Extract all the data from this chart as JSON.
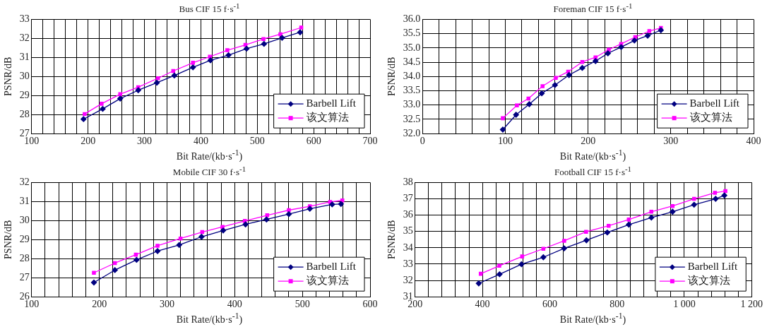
{
  "chart_data": [
    {
      "type": "line",
      "title": "Bus  CIF  15 f·s$^{-1}$",
      "xlabel": "Bit Rate/(kb·s$^{-1}$)",
      "ylabel": "PSNR/dB",
      "grid": true,
      "legend": "bottom right",
      "xlim": [
        100,
        700
      ],
      "xticks": [
        100,
        {
          "value": 120,
          "label": null
        },
        {
          "value": 140,
          "label": null
        },
        {
          "value": 160,
          "label": null
        },
        {
          "value": 180,
          "label": null
        },
        200,
        {
          "value": 220,
          "label": null
        },
        {
          "value": 240,
          "label": null
        },
        {
          "value": 260,
          "label": null
        },
        {
          "value": 280,
          "label": null
        },
        300,
        {
          "value": 320,
          "label": null
        },
        {
          "value": 340,
          "label": null
        },
        {
          "value": 360,
          "label": null
        },
        {
          "value": 380,
          "label": null
        },
        400,
        {
          "value": 420,
          "label": null
        },
        {
          "value": 440,
          "label": null
        },
        {
          "value": 460,
          "label": null
        },
        {
          "value": 480,
          "label": null
        },
        500,
        {
          "value": 520,
          "label": null
        },
        {
          "value": 540,
          "label": null
        },
        {
          "value": 560,
          "label": null
        },
        {
          "value": 580,
          "label": null
        },
        600,
        {
          "value": 620,
          "label": null
        },
        {
          "value": 640,
          "label": null
        },
        {
          "value": 660,
          "label": null
        },
        {
          "value": 680,
          "label": null
        },
        700
      ],
      "ylim": [
        27,
        33
      ],
      "yticks": [
        27,
        28,
        29,
        30,
        31,
        32,
        33
      ],
      "series": [
        {
          "name": "Barbell Lift",
          "color": "#000080",
          "marker": "diamond",
          "x": [
            192,
            226,
            257,
            289,
            322,
            353,
            386,
            417,
            449,
            481,
            512,
            544,
            576
          ],
          "values": [
            27.76,
            28.3,
            28.84,
            29.28,
            29.67,
            30.05,
            30.48,
            30.85,
            31.12,
            31.46,
            31.71,
            32.03,
            32.32
          ]
        },
        {
          "name": "该文算法",
          "color": "#ff00ff",
          "marker": "square",
          "x": [
            194,
            224,
            257,
            289,
            324,
            351,
            386,
            416,
            447,
            479,
            511,
            541,
            578
          ],
          "values": [
            28.03,
            28.57,
            29.07,
            29.44,
            29.91,
            30.29,
            30.72,
            31.04,
            31.38,
            31.66,
            31.97,
            32.22,
            32.57
          ]
        }
      ]
    },
    {
      "type": "line",
      "title": "Foreman  CIF  15 f·s$^{-1}$",
      "xlabel": "Bit Rate/(kb·s$^{-1}$)",
      "ylabel": "PSNR/dB",
      "grid": true,
      "legend": "bottom right",
      "xlim": [
        0,
        400
      ],
      "xticks": [
        0,
        {
          "value": 20,
          "label": null
        },
        {
          "value": 40,
          "label": null
        },
        {
          "value": 60,
          "label": null
        },
        {
          "value": 80,
          "label": null
        },
        100,
        {
          "value": 120,
          "label": null
        },
        {
          "value": 140,
          "label": null
        },
        {
          "value": 160,
          "label": null
        },
        {
          "value": 180,
          "label": null
        },
        200,
        {
          "value": 220,
          "label": null
        },
        {
          "value": 240,
          "label": null
        },
        {
          "value": 260,
          "label": null
        },
        {
          "value": 280,
          "label": null
        },
        300,
        {
          "value": 320,
          "label": null
        },
        {
          "value": 340,
          "label": null
        },
        {
          "value": 360,
          "label": null
        },
        {
          "value": 380,
          "label": null
        },
        400
      ],
      "ylim": [
        32,
        36
      ],
      "yticks": [
        {
          "value": 32,
          "label": "32.0"
        },
        32.5,
        {
          "value": 33,
          "label": "33.0"
        },
        33.5,
        {
          "value": 34,
          "label": "34.0"
        },
        34.5,
        {
          "value": 35,
          "label": "35.0"
        },
        35.5,
        {
          "value": 36,
          "label": "36.0"
        }
      ],
      "series": [
        {
          "name": "Barbell Lift",
          "color": "#000080",
          "marker": "diamond",
          "x": [
            97,
            113,
            129,
            144,
            160,
            177,
            193,
            209,
            224,
            240,
            256,
            272,
            288
          ],
          "values": [
            32.14,
            32.66,
            33.03,
            33.41,
            33.7,
            34.05,
            34.3,
            34.54,
            34.81,
            35.03,
            35.26,
            35.43,
            35.62
          ]
        },
        {
          "name": "该文算法",
          "color": "#ff00ff",
          "marker": "square",
          "x": [
            97,
            114,
            128,
            145,
            161,
            176,
            193,
            209,
            225,
            240,
            257,
            274,
            288
          ],
          "values": [
            32.54,
            32.99,
            33.23,
            33.66,
            33.95,
            34.17,
            34.51,
            34.67,
            34.94,
            35.14,
            35.38,
            35.59,
            35.7
          ]
        }
      ]
    },
    {
      "type": "line",
      "title": "Mobile  CIF  30 f·s$^{-1}$",
      "xlabel": "Bit Rate/(kb·s$^{-1}$)",
      "ylabel": "PSNR/dB",
      "grid": true,
      "legend": "bottom right",
      "xlim": [
        100,
        600
      ],
      "xticks": [
        100,
        {
          "value": 120,
          "label": null
        },
        {
          "value": 140,
          "label": null
        },
        {
          "value": 160,
          "label": null
        },
        {
          "value": 180,
          "label": null
        },
        200,
        {
          "value": 220,
          "label": null
        },
        {
          "value": 240,
          "label": null
        },
        {
          "value": 260,
          "label": null
        },
        {
          "value": 280,
          "label": null
        },
        300,
        {
          "value": 320,
          "label": null
        },
        {
          "value": 340,
          "label": null
        },
        {
          "value": 360,
          "label": null
        },
        {
          "value": 380,
          "label": null
        },
        400,
        {
          "value": 420,
          "label": null
        },
        {
          "value": 440,
          "label": null
        },
        {
          "value": 460,
          "label": null
        },
        {
          "value": 480,
          "label": null
        },
        500,
        {
          "value": 520,
          "label": null
        },
        {
          "value": 540,
          "label": null
        },
        {
          "value": 560,
          "label": null
        },
        {
          "value": 580,
          "label": null
        },
        600
      ],
      "ylim": [
        26,
        32
      ],
      "yticks": [
        26,
        27,
        28,
        29,
        30,
        31,
        32
      ],
      "series": [
        {
          "name": "Barbell Lift",
          "color": "#000080",
          "marker": "diamond",
          "x": [
            192,
            223,
            255,
            286,
            318,
            351,
            383,
            416,
            447,
            480,
            511,
            544,
            557
          ],
          "values": [
            26.75,
            27.4,
            27.94,
            28.4,
            28.72,
            29.15,
            29.48,
            29.8,
            30.06,
            30.34,
            30.62,
            30.85,
            30.87
          ]
        },
        {
          "name": "该文算法",
          "color": "#ff00ff",
          "marker": "square",
          "x": [
            192,
            223,
            254,
            286,
            320,
            352,
            382,
            415,
            448,
            480,
            511,
            541,
            559
          ],
          "values": [
            27.26,
            27.77,
            28.21,
            28.68,
            29.06,
            29.4,
            29.67,
            29.98,
            30.28,
            30.55,
            30.75,
            30.98,
            31.06
          ]
        }
      ]
    },
    {
      "type": "line",
      "title": "Football  CIF  15 f·s$^{-1}$",
      "xlabel": "Bit Rate/(kb·s$^{-1}$)",
      "ylabel": "PSNR/dB",
      "grid": true,
      "legend": "bottom right",
      "xlim": [
        200,
        1200
      ],
      "xticks": [
        200,
        {
          "value": 240,
          "label": null
        },
        {
          "value": 280,
          "label": null
        },
        {
          "value": 320,
          "label": null
        },
        {
          "value": 360,
          "label": null
        },
        400,
        {
          "value": 440,
          "label": null
        },
        {
          "value": 480,
          "label": null
        },
        {
          "value": 520,
          "label": null
        },
        {
          "value": 560,
          "label": null
        },
        600,
        {
          "value": 640,
          "label": null
        },
        {
          "value": 680,
          "label": null
        },
        {
          "value": 720,
          "label": null
        },
        {
          "value": 760,
          "label": null
        },
        800,
        {
          "value": 840,
          "label": null
        },
        {
          "value": 880,
          "label": null
        },
        {
          "value": 920,
          "label": null
        },
        {
          "value": 960,
          "label": null
        },
        {
          "value": 1000,
          "label": "1 000"
        },
        {
          "value": 1040,
          "label": null
        },
        {
          "value": 1080,
          "label": null
        },
        {
          "value": 1120,
          "label": null
        },
        {
          "value": 1160,
          "label": null
        },
        {
          "value": 1200,
          "label": "1 200"
        }
      ],
      "ylim": [
        31,
        38
      ],
      "yticks": [
        31,
        32,
        33,
        34,
        35,
        36,
        37,
        38
      ],
      "series": [
        {
          "name": "Barbell Lift",
          "color": "#000080",
          "marker": "diamond",
          "x": [
            389,
            451,
            516,
            581,
            643,
            709,
            771,
            835,
            902,
            965,
            1029,
            1093,
            1119
          ],
          "values": [
            31.82,
            32.38,
            32.99,
            33.42,
            33.97,
            34.46,
            34.94,
            35.42,
            35.85,
            36.21,
            36.64,
            37.0,
            37.21
          ]
        },
        {
          "name": "该文算法",
          "color": "#ff00ff",
          "marker": "square",
          "x": [
            395,
            450,
            518,
            581,
            643,
            708,
            775,
            835,
            902,
            965,
            1029,
            1091,
            1122
          ],
          "values": [
            32.41,
            32.9,
            33.47,
            33.94,
            34.43,
            34.98,
            35.35,
            35.73,
            36.21,
            36.56,
            37.0,
            37.37,
            37.48
          ]
        }
      ]
    }
  ]
}
